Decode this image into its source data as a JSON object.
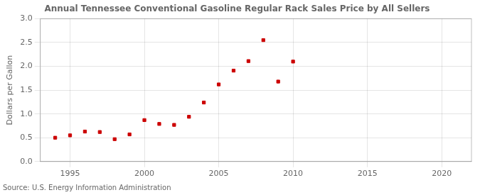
{
  "chart_data": {
    "type": "scatter",
    "title": "Annual Tennessee Conventional Gasoline Regular Rack Sales Price by All Sellers",
    "y_label": "Dollars per Gallon",
    "annotations": [
      "Source: U.S. Energy Information Administration"
    ],
    "x": [
      1994,
      1995,
      1996,
      1997,
      1998,
      1999,
      2000,
      2001,
      2002,
      2003,
      2004,
      2005,
      2006,
      2007,
      2008,
      2009,
      2010
    ],
    "values": [
      0.5,
      0.55,
      0.63,
      0.62,
      0.47,
      0.57,
      0.87,
      0.79,
      0.77,
      0.94,
      1.24,
      1.62,
      1.91,
      2.11,
      2.55,
      1.68,
      2.1
    ],
    "color": "#cc0000",
    "marker": "square",
    "xlim": [
      1993,
      2022
    ],
    "ylim": [
      0.0,
      3.0
    ],
    "xticks": [
      1995,
      2000,
      2005,
      2010,
      2015,
      2020
    ],
    "yticks": [
      {
        "value": 0.0,
        "label": "0.0"
      },
      0.5,
      {
        "value": 1.0,
        "label": "1.0"
      },
      1.5,
      {
        "value": 2.0,
        "label": "2.0"
      },
      2.5,
      {
        "value": 3.0,
        "label": "3.0"
      }
    ],
    "grid": true
  }
}
